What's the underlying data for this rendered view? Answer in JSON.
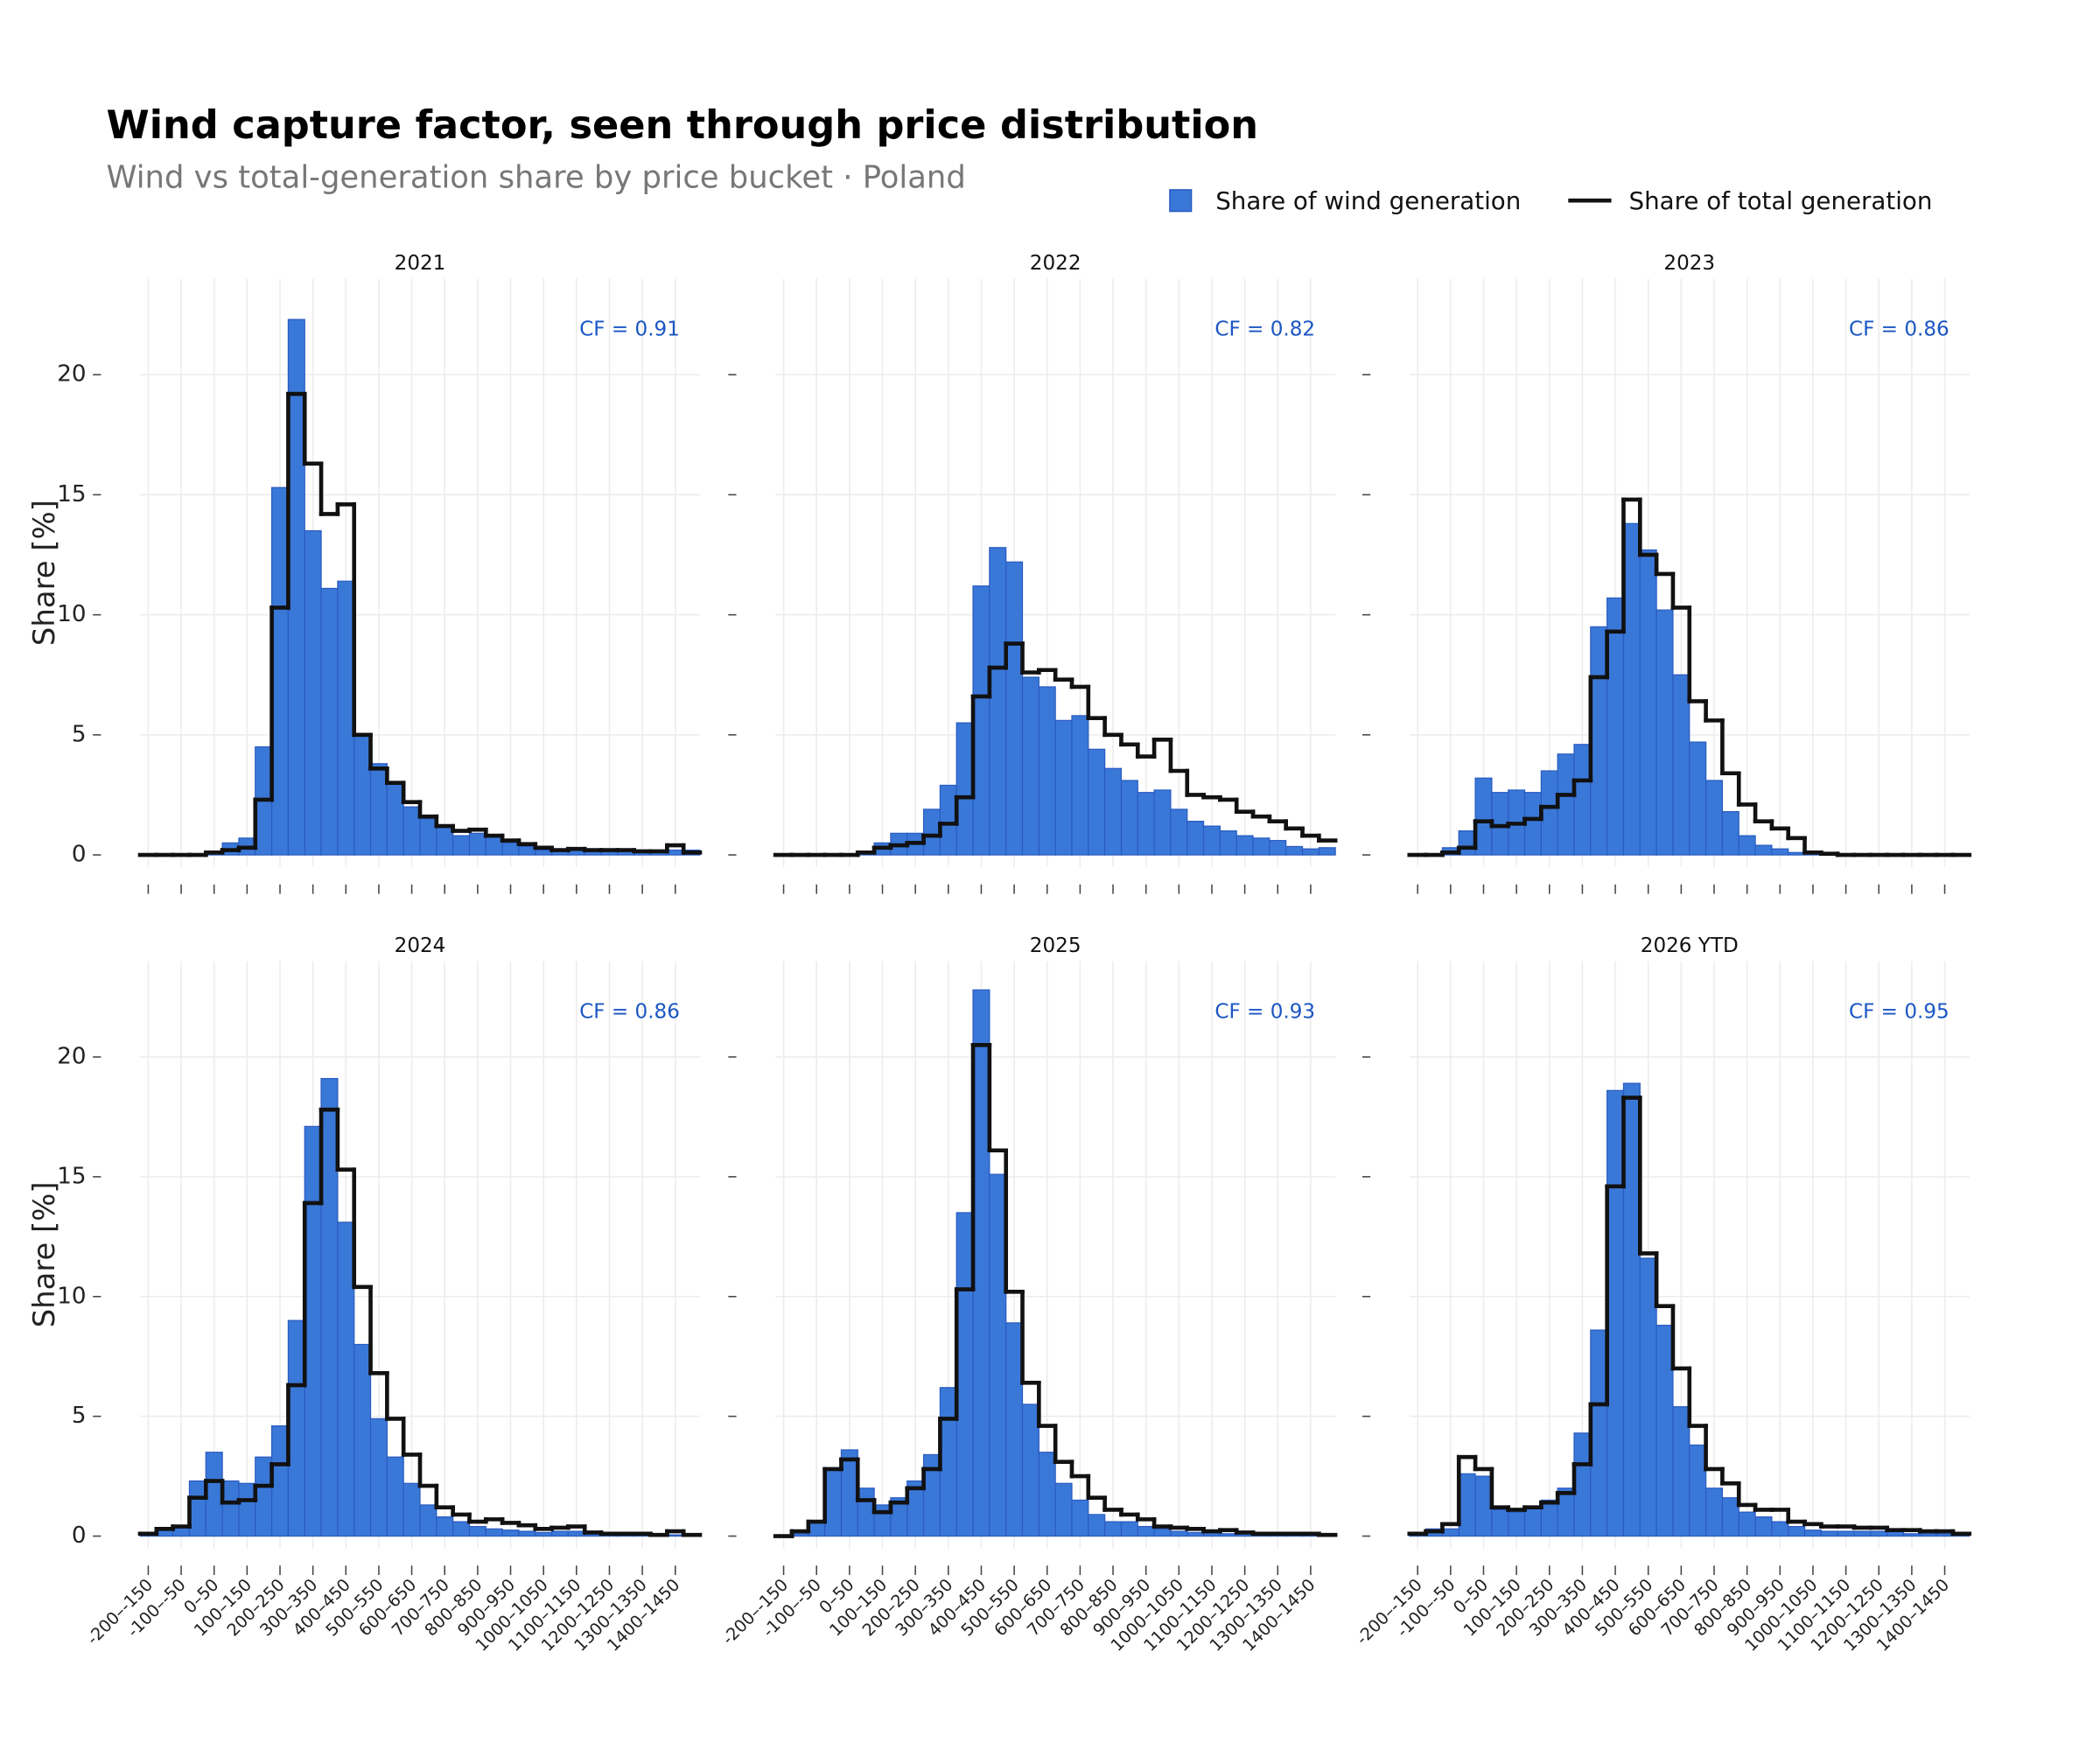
{
  "title": "Wind capture factor, seen through price distribution",
  "subtitle": "Wind vs total-generation share by price bucket · Poland",
  "chart_data": [
    {
      "type": "bar",
      "title": "2021",
      "annotation": "CF = 0.91",
      "y_label": "Share [%]",
      "ylim": [
        -0.5,
        24
      ],
      "yticks": [
        0,
        5,
        10,
        15,
        20
      ],
      "grid": true,
      "series": [
        {
          "name": "Share of wind generation",
          "type": "bar",
          "color": "#3a78d8",
          "values": [
            0,
            0,
            0,
            0,
            0.05,
            0.5,
            0.7,
            4.5,
            15.3,
            22.3,
            13.5,
            11.1,
            11.4,
            5.0,
            3.8,
            3.0,
            2.0,
            1.5,
            1.2,
            0.8,
            0.9,
            0.8,
            0.5,
            0.35,
            0.2,
            0.15,
            0.2,
            0.2,
            0.15,
            0.15,
            0.15,
            0.1,
            0.2,
            0.2
          ]
        },
        {
          "name": "Share of total generation",
          "type": "step",
          "color": "#111111",
          "values": [
            0,
            0,
            0,
            0,
            0.1,
            0.2,
            0.3,
            2.3,
            10.3,
            19.2,
            16.3,
            14.2,
            14.6,
            5.0,
            3.6,
            3.0,
            2.2,
            1.6,
            1.2,
            1.0,
            1.05,
            0.8,
            0.6,
            0.45,
            0.3,
            0.2,
            0.25,
            0.2,
            0.2,
            0.2,
            0.15,
            0.15,
            0.4,
            0.1
          ]
        }
      ]
    },
    {
      "type": "bar",
      "title": "2022",
      "annotation": "CF = 0.82",
      "ylim": [
        -0.5,
        24
      ],
      "yticks": [
        0,
        5,
        10,
        15,
        20
      ],
      "grid": true,
      "series": [
        {
          "type": "bar",
          "color": "#3a78d8",
          "values": [
            0,
            0,
            0,
            0,
            0,
            0.1,
            0.5,
            0.9,
            0.9,
            1.9,
            2.9,
            5.5,
            11.2,
            12.8,
            12.2,
            7.4,
            7.0,
            5.6,
            5.8,
            4.4,
            3.6,
            3.1,
            2.6,
            2.7,
            1.9,
            1.4,
            1.2,
            1.0,
            0.8,
            0.7,
            0.6,
            0.35,
            0.25,
            0.3
          ]
        },
        {
          "type": "step",
          "color": "#111111",
          "values": [
            0,
            0,
            0,
            0,
            0,
            0.1,
            0.3,
            0.4,
            0.5,
            0.8,
            1.3,
            2.4,
            6.6,
            7.8,
            8.8,
            7.6,
            7.7,
            7.3,
            7.0,
            5.7,
            5.0,
            4.6,
            4.1,
            4.8,
            3.5,
            2.5,
            2.4,
            2.3,
            1.8,
            1.6,
            1.4,
            1.1,
            0.8,
            0.6
          ]
        }
      ]
    },
    {
      "type": "bar",
      "title": "2023",
      "annotation": "CF = 0.86",
      "ylim": [
        -0.5,
        24
      ],
      "yticks": [
        0,
        5,
        10,
        15,
        20
      ],
      "grid": true,
      "series": [
        {
          "type": "bar",
          "color": "#3a78d8",
          "values": [
            0,
            0,
            0.3,
            1.0,
            3.2,
            2.6,
            2.7,
            2.6,
            3.5,
            4.2,
            4.6,
            9.5,
            10.7,
            13.8,
            12.7,
            10.2,
            7.5,
            4.7,
            3.1,
            1.8,
            0.8,
            0.4,
            0.25,
            0.1,
            0.05,
            0,
            0,
            0,
            0,
            0,
            0,
            0,
            0,
            0
          ]
        },
        {
          "type": "step",
          "color": "#111111",
          "values": [
            0,
            0,
            0.1,
            0.3,
            1.4,
            1.2,
            1.3,
            1.5,
            2.0,
            2.5,
            3.1,
            7.4,
            9.3,
            14.8,
            12.5,
            11.7,
            10.3,
            6.4,
            5.6,
            3.4,
            2.1,
            1.4,
            1.1,
            0.7,
            0.1,
            0.05,
            0,
            0,
            0,
            0,
            0,
            0,
            0,
            0
          ]
        }
      ]
    },
    {
      "type": "bar",
      "title": "2024",
      "annotation": "CF = 0.86",
      "y_label": "Share [%]",
      "ylim": [
        -0.5,
        24
      ],
      "yticks": [
        0,
        5,
        10,
        15,
        20
      ],
      "grid": true,
      "categories": [
        "-200–-150",
        null,
        "-100–-50",
        null,
        "0–50",
        null,
        "100–150",
        null,
        "200–250",
        null,
        "300–350",
        null,
        "400–450",
        null,
        "500–550",
        null,
        "600–650",
        null,
        "700–750",
        null,
        "800–850",
        null,
        "900–950",
        null,
        "1000–1050",
        null,
        "1100–1150",
        null,
        "1200–1250",
        null,
        "1300–1350",
        null,
        "1400–1450",
        null
      ],
      "series": [
        {
          "type": "bar",
          "color": "#3a78d8",
          "values": [
            0.1,
            0.3,
            0.4,
            2.3,
            3.5,
            2.3,
            2.2,
            3.3,
            4.6,
            9.0,
            17.1,
            19.1,
            13.1,
            8.0,
            4.9,
            3.3,
            2.2,
            1.3,
            0.8,
            0.6,
            0.4,
            0.3,
            0.25,
            0.2,
            0.15,
            0.2,
            0.2,
            0.1,
            0.1,
            0.1,
            0.1,
            0.1,
            0.05,
            0.1
          ]
        },
        {
          "type": "step",
          "color": "#111111",
          "values": [
            0.1,
            0.3,
            0.4,
            1.6,
            2.3,
            1.4,
            1.5,
            2.1,
            3.0,
            6.3,
            13.9,
            17.8,
            15.3,
            10.4,
            6.8,
            4.9,
            3.4,
            2.1,
            1.2,
            0.9,
            0.6,
            0.7,
            0.55,
            0.45,
            0.3,
            0.35,
            0.4,
            0.15,
            0.1,
            0.1,
            0.1,
            0.05,
            0.2,
            0.05
          ]
        }
      ]
    },
    {
      "type": "bar",
      "title": "2025",
      "annotation": "CF = 0.93",
      "ylim": [
        -0.5,
        24
      ],
      "yticks": [
        0,
        5,
        10,
        15,
        20
      ],
      "grid": true,
      "categories": [
        "-200–-150",
        null,
        "-100–-50",
        null,
        "0–50",
        null,
        "100–150",
        null,
        "200–250",
        null,
        "300–350",
        null,
        "400–450",
        null,
        "500–550",
        null,
        "600–650",
        null,
        "700–750",
        null,
        "800–850",
        null,
        "900–950",
        null,
        "1000–1050",
        null,
        "1100–1150",
        null,
        "1200–1250",
        null,
        "1300–1350",
        null,
        "1400–1450",
        null
      ],
      "series": [
        {
          "type": "bar",
          "color": "#3a78d8",
          "values": [
            0,
            0.1,
            0.6,
            2.8,
            3.6,
            2.0,
            1.3,
            1.6,
            2.3,
            3.4,
            6.2,
            13.5,
            22.8,
            15.1,
            8.9,
            5.5,
            3.5,
            2.2,
            1.5,
            0.9,
            0.6,
            0.6,
            0.4,
            0.3,
            0.2,
            0.15,
            0.15,
            0.1,
            0.1,
            0.05,
            0.05,
            0.05,
            0.05,
            0.05
          ]
        },
        {
          "type": "step",
          "color": "#111111",
          "values": [
            0,
            0.2,
            0.6,
            2.8,
            3.2,
            1.5,
            1.0,
            1.4,
            2.0,
            2.8,
            4.9,
            10.3,
            20.5,
            16.1,
            10.2,
            6.4,
            4.6,
            3.1,
            2.5,
            1.6,
            1.1,
            0.9,
            0.7,
            0.4,
            0.35,
            0.3,
            0.2,
            0.25,
            0.15,
            0.1,
            0.1,
            0.1,
            0.1,
            0.05
          ]
        }
      ]
    },
    {
      "type": "bar",
      "title": "2026 YTD",
      "annotation": "CF = 0.95",
      "ylim": [
        -0.5,
        24
      ],
      "yticks": [
        0,
        5,
        10,
        15,
        20
      ],
      "grid": true,
      "categories": [
        "-200–-150",
        null,
        "-100–-50",
        null,
        "0–50",
        null,
        "100–150",
        null,
        "200–250",
        null,
        "300–350",
        null,
        "400–450",
        null,
        "500–550",
        null,
        "600–650",
        null,
        "700–750",
        null,
        "800–850",
        null,
        "900–950",
        null,
        "1000–1050",
        null,
        "1100–1150",
        null,
        "1200–1250",
        null,
        "1300–1350",
        null,
        "1400–1450",
        null
      ],
      "series": [
        {
          "type": "bar",
          "color": "#3a78d8",
          "values": [
            0.1,
            0.3,
            0.3,
            2.6,
            2.5,
            1.1,
            1.0,
            1.2,
            1.5,
            2.0,
            4.3,
            8.6,
            18.6,
            18.9,
            11.6,
            8.8,
            5.4,
            3.8,
            2.0,
            1.6,
            1.0,
            0.8,
            0.6,
            0.4,
            0.25,
            0.2,
            0.2,
            0.2,
            0.2,
            0.2,
            0.1,
            0.1,
            0.1,
            0.1
          ]
        },
        {
          "type": "step",
          "color": "#111111",
          "values": [
            0.1,
            0.2,
            0.5,
            3.3,
            2.8,
            1.2,
            1.1,
            1.2,
            1.4,
            1.8,
            3.0,
            5.5,
            14.6,
            18.3,
            11.8,
            9.6,
            7.0,
            4.6,
            2.8,
            2.2,
            1.3,
            1.1,
            1.1,
            0.6,
            0.5,
            0.4,
            0.4,
            0.35,
            0.35,
            0.25,
            0.25,
            0.2,
            0.2,
            0.1
          ]
        }
      ]
    }
  ]
}
